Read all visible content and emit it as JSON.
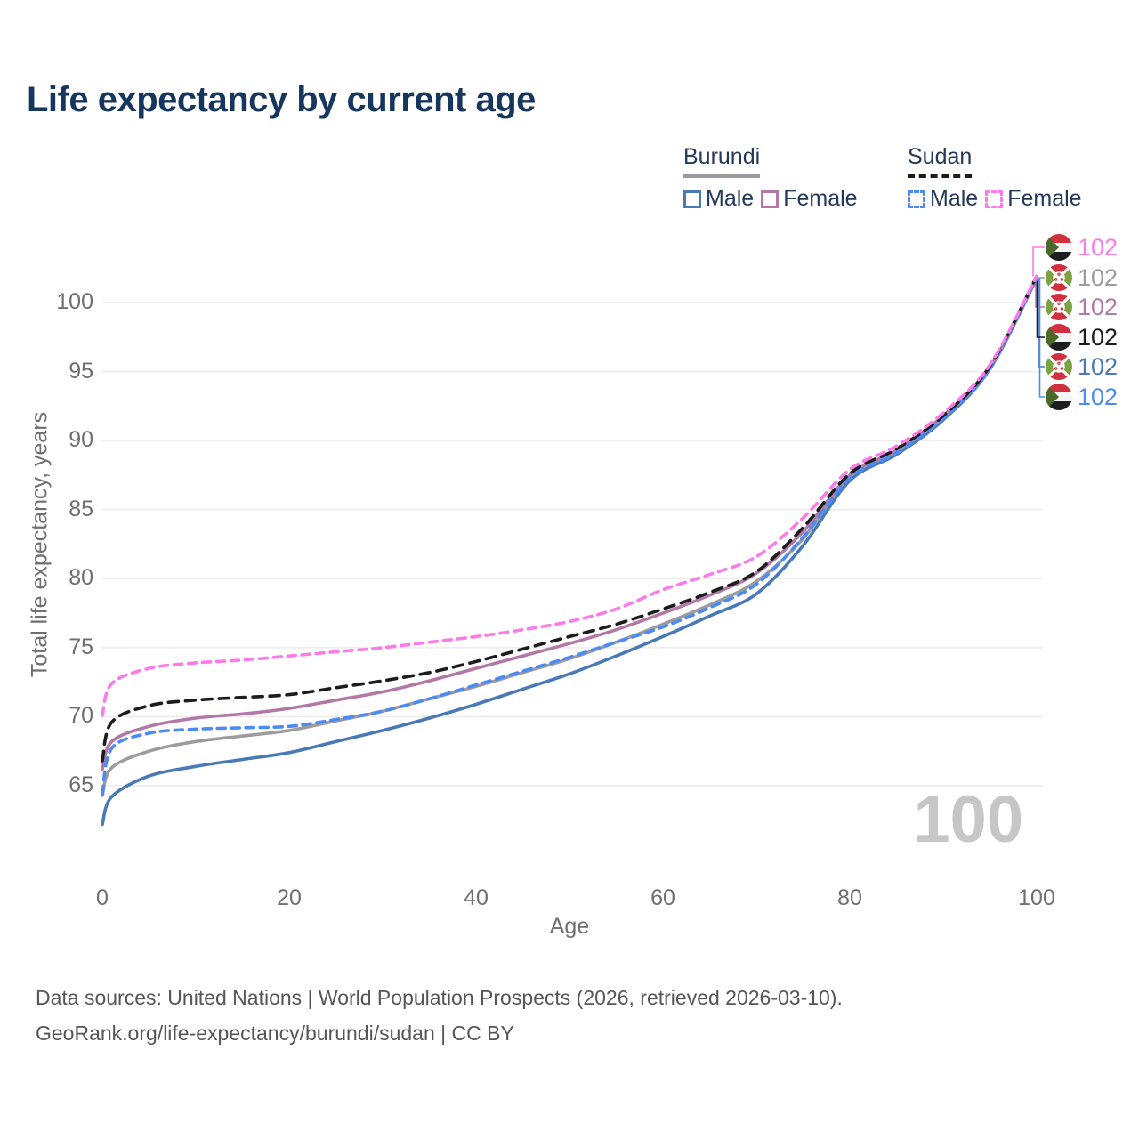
{
  "title": "Life expectancy by current age",
  "legend": {
    "groups": [
      {
        "country": "Burundi",
        "underline_color": "#9c9c9c",
        "entries": [
          {
            "label": "Male",
            "swatch_color": "#4a79b8",
            "style": "solid"
          },
          {
            "label": "Female",
            "swatch_color": "#b279a7",
            "style": "solid"
          }
        ]
      },
      {
        "country": "Sudan",
        "underline_color": "#1c1c1c",
        "entries": [
          {
            "label": "Male",
            "swatch_color": "#4c8bf5",
            "style": "dashed"
          },
          {
            "label": "Female",
            "swatch_color": "#fb7ce8",
            "style": "dashed"
          }
        ]
      }
    ]
  },
  "chart_data": {
    "type": "line",
    "title": "Life expectancy by current age",
    "xlabel": "Age",
    "ylabel": "Total life expectancy, years",
    "xlim": [
      0,
      100
    ],
    "ylim": [
      61,
      103
    ],
    "xticks": [
      0,
      20,
      40,
      60,
      80,
      100
    ],
    "yticks": [
      100,
      95,
      90,
      85,
      80,
      75,
      70,
      65
    ],
    "grid": "horizontal",
    "frame_label": "100",
    "x": [
      0,
      1,
      5,
      10,
      15,
      20,
      25,
      30,
      35,
      40,
      45,
      50,
      55,
      60,
      65,
      70,
      75,
      80,
      85,
      90,
      95,
      100
    ],
    "series": [
      {
        "name": "Burundi Male",
        "country": "Burundi",
        "sex": "male",
        "color": "#4a79b8",
        "dash": null,
        "end_label": "102",
        "values": [
          62.2,
          64.2,
          65.7,
          66.4,
          66.9,
          67.4,
          68.2,
          69.0,
          69.9,
          70.9,
          72.0,
          73.1,
          74.4,
          75.8,
          77.3,
          78.9,
          82.4,
          87.1,
          89.0,
          91.5,
          95.2,
          101.75
        ]
      },
      {
        "name": "Burundi",
        "country": "Burundi",
        "sex": "both",
        "color": "#9c9c9c",
        "dash": null,
        "end_label": "102",
        "values": [
          64.3,
          66.3,
          67.5,
          68.2,
          68.6,
          69.0,
          69.7,
          70.4,
          71.3,
          72.2,
          73.2,
          74.2,
          75.4,
          76.7,
          78.1,
          79.8,
          82.9,
          87.4,
          89.2,
          91.7,
          95.3,
          101.8
        ]
      },
      {
        "name": "Burundi Female",
        "country": "Burundi",
        "sex": "female",
        "color": "#b279a7",
        "dash": null,
        "end_label": "102",
        "values": [
          66.2,
          68.2,
          69.3,
          69.9,
          70.2,
          70.6,
          71.2,
          71.8,
          72.6,
          73.5,
          74.4,
          75.3,
          76.3,
          77.5,
          78.8,
          80.4,
          83.4,
          87.5,
          89.3,
          91.8,
          95.3,
          101.8
        ]
      },
      {
        "name": "Sudan Male",
        "country": "Sudan",
        "sex": "male",
        "color": "#4c8bf5",
        "dash": "9 7",
        "end_label": "102",
        "values": [
          64.4,
          67.7,
          68.8,
          69.1,
          69.2,
          69.3,
          69.8,
          70.4,
          71.3,
          72.3,
          73.3,
          74.3,
          75.4,
          76.5,
          77.9,
          79.6,
          83.0,
          87.3,
          89.1,
          91.6,
          95.2,
          101.8
        ]
      },
      {
        "name": "Sudan",
        "country": "Sudan",
        "sex": "both",
        "color": "#1c1c1c",
        "dash": "11 8",
        "end_label": "102",
        "values": [
          66.8,
          69.6,
          70.8,
          71.2,
          71.4,
          71.6,
          72.1,
          72.6,
          73.2,
          74.0,
          74.9,
          75.8,
          76.7,
          77.8,
          79.0,
          80.5,
          83.7,
          87.6,
          89.4,
          91.8,
          95.4,
          101.9
        ]
      },
      {
        "name": "Sudan Female",
        "country": "Sudan",
        "sex": "female",
        "color": "#fb7ce8",
        "dash": "9 7",
        "end_label": "102",
        "values": [
          70.1,
          72.4,
          73.5,
          73.9,
          74.1,
          74.4,
          74.7,
          75.0,
          75.4,
          75.8,
          76.3,
          76.9,
          77.8,
          79.2,
          80.3,
          81.6,
          84.4,
          87.9,
          89.6,
          92.0,
          95.5,
          101.9
        ]
      }
    ]
  },
  "right_labels": [
    {
      "series": "Sudan Female",
      "country": "Sudan",
      "value": "102",
      "color": "#fb7ce8"
    },
    {
      "series": "Burundi",
      "country": "Burundi",
      "value": "102",
      "color": "#9c9c9c"
    },
    {
      "series": "Burundi Female",
      "country": "Burundi",
      "value": "102",
      "color": "#b279a7"
    },
    {
      "series": "Sudan",
      "country": "Sudan",
      "value": "102",
      "color": "#1c1c1c"
    },
    {
      "series": "Burundi Male",
      "country": "Burundi",
      "value": "102",
      "color": "#4a79b8"
    },
    {
      "series": "Sudan Male",
      "country": "Sudan",
      "value": "102",
      "color": "#4c8bf5"
    }
  ],
  "footer": {
    "line1": "Data sources: United Nations | World Population Prospects (2026, retrieved 2026-03-10).",
    "line2": "GeoRank.org/life-expectancy/burundi/sudan | CC BY"
  }
}
